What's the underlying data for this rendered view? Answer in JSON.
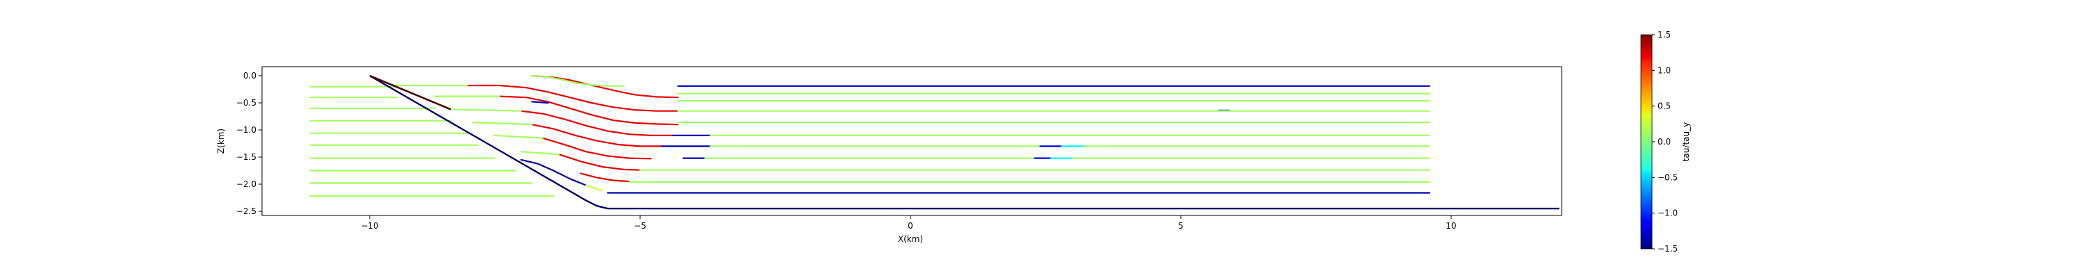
{
  "chart_data": {
    "type": "line",
    "xlabel": "X(km)",
    "ylabel": "Z(km)",
    "xlim": [
      -12.1,
      12.0
    ],
    "ylim": [
      -2.6,
      0.15
    ],
    "x_ticks": [
      -10,
      -5,
      0,
      5,
      10
    ],
    "x_tick_labels": [
      "−10",
      "−5",
      "0",
      "5",
      "10"
    ],
    "y_ticks": [
      0.0,
      -0.5,
      -1.0,
      -1.5,
      -2.0,
      -2.5
    ],
    "y_tick_labels": [
      "0.0",
      "−0.5",
      "−1.0",
      "−1.5",
      "−2.0",
      "−2.5"
    ],
    "grid": false,
    "colorbar": {
      "label": "tau/tau_y",
      "colormap": "jet",
      "range": [
        -1.5,
        1.5
      ],
      "ticks": [
        1.5,
        1.0,
        0.5,
        0.0,
        -0.5,
        -1.0,
        -1.5
      ],
      "tick_labels": [
        "1.5",
        "1.0",
        "0.5",
        "0.0",
        "−0.5",
        "−1.0",
        "−1.5"
      ]
    },
    "boundary": {
      "name": "domain boundary",
      "color": "#000066",
      "x": [
        -10.0,
        -6.0,
        -5.8,
        -5.6,
        -5.4,
        12.0
      ],
      "z": [
        0.0,
        -2.3,
        -2.4,
        -2.45,
        -2.45,
        -2.45
      ]
    },
    "surface_fault": {
      "name": "surface trace",
      "color": "#4d0000",
      "x": [
        -10.0,
        -8.5
      ],
      "z": [
        0.0,
        -0.62
      ]
    },
    "streamlines": [
      {
        "segments": [
          {
            "x": [
              -11.1,
              -9.5
            ],
            "z": [
              -0.2,
              -0.2
            ],
            "c": 0.1
          }
        ]
      },
      {
        "segments": [
          {
            "x": [
              -11.1,
              -9.5
            ],
            "z": [
              -0.4,
              -0.4
            ],
            "c": 0.1
          }
        ]
      },
      {
        "segments": [
          {
            "x": [
              -11.1,
              -8.8
            ],
            "z": [
              -0.6,
              -0.6
            ],
            "c": 0.1
          }
        ]
      },
      {
        "segments": [
          {
            "x": [
              -11.1,
              -8.5
            ],
            "z": [
              -0.83,
              -0.83
            ],
            "c": 0.1
          }
        ]
      },
      {
        "segments": [
          {
            "x": [
              -11.1,
              -8.2
            ],
            "z": [
              -1.06,
              -1.06
            ],
            "c": 0.1
          }
        ]
      },
      {
        "segments": [
          {
            "x": [
              -11.1,
              -8.0
            ],
            "z": [
              -1.28,
              -1.28
            ],
            "c": 0.1
          }
        ]
      },
      {
        "segments": [
          {
            "x": [
              -11.1,
              -7.7
            ],
            "z": [
              -1.52,
              -1.52
            ],
            "c": 0.1
          }
        ]
      },
      {
        "segments": [
          {
            "x": [
              -11.1,
              -7.3
            ],
            "z": [
              -1.75,
              -1.75
            ],
            "c": 0.1
          }
        ]
      },
      {
        "segments": [
          {
            "x": [
              -11.1,
              -7.0
            ],
            "z": [
              -1.98,
              -1.98
            ],
            "c": 0.1
          }
        ]
      },
      {
        "segments": [
          {
            "x": [
              -11.1,
              -6.6
            ],
            "z": [
              -2.22,
              -2.22
            ],
            "c": 0.1
          }
        ]
      },
      {
        "segments": [
          {
            "x": [
              -7.0,
              -6.6,
              -6.3,
              -6.0,
              -5.7,
              -5.4,
              -5.1,
              -4.7,
              -4.3
            ],
            "z": [
              0.0,
              -0.03,
              -0.08,
              -0.15,
              -0.22,
              -0.29,
              -0.35,
              -0.39,
              -0.4
            ],
            "c": 1.2
          },
          {
            "x": [
              -7.0,
              -6.8
            ],
            "z": [
              0.0,
              -0.01
            ],
            "c": 0.1
          }
        ]
      },
      {
        "segments": [
          {
            "x": [
              -8.2,
              -7.6,
              -7.1,
              -6.7,
              -6.3,
              -5.9,
              -5.5,
              -5.1,
              -4.7,
              -4.3
            ],
            "z": [
              -0.18,
              -0.18,
              -0.22,
              -0.3,
              -0.4,
              -0.5,
              -0.58,
              -0.63,
              -0.65,
              -0.65
            ],
            "c": 1.2
          },
          {
            "x": [
              -9.6,
              -8.2
            ],
            "z": [
              -0.18,
              -0.18
            ],
            "c": 0.1
          }
        ]
      },
      {
        "segments": [
          {
            "x": [
              -7.6,
              -7.1,
              -6.7,
              -6.3,
              -5.9,
              -5.5,
              -5.1,
              -4.7,
              -4.3
            ],
            "z": [
              -0.38,
              -0.4,
              -0.48,
              -0.6,
              -0.72,
              -0.82,
              -0.87,
              -0.89,
              -0.9
            ],
            "c": 1.2
          },
          {
            "x": [
              -8.8,
              -7.6
            ],
            "z": [
              -0.38,
              -0.38
            ],
            "c": 0.1
          }
        ]
      },
      {
        "segments": [
          {
            "x": [
              -7.2,
              -6.8,
              -6.4,
              -6.0,
              -5.6,
              -5.2,
              -4.8,
              -4.4
            ],
            "z": [
              -0.65,
              -0.7,
              -0.8,
              -0.92,
              -1.02,
              -1.08,
              -1.1,
              -1.1
            ],
            "c": 1.2
          },
          {
            "x": [
              -8.5,
              -7.2
            ],
            "z": [
              -0.62,
              -0.65
            ],
            "c": 0.1
          }
        ]
      },
      {
        "segments": [
          {
            "x": [
              -7.0,
              -6.6,
              -6.2,
              -5.8,
              -5.4,
              -5.0,
              -4.6
            ],
            "z": [
              -0.9,
              -0.98,
              -1.1,
              -1.2,
              -1.27,
              -1.3,
              -1.3
            ],
            "c": 1.2
          },
          {
            "x": [
              -8.1,
              -7.0
            ],
            "z": [
              -0.86,
              -0.9
            ],
            "c": 0.1
          }
        ]
      },
      {
        "segments": [
          {
            "x": [
              -6.8,
              -6.4,
              -6.0,
              -5.6,
              -5.2,
              -4.8
            ],
            "z": [
              -1.15,
              -1.27,
              -1.4,
              -1.48,
              -1.52,
              -1.53
            ],
            "c": 1.2
          },
          {
            "x": [
              -7.7,
              -6.8
            ],
            "z": [
              -1.1,
              -1.15
            ],
            "c": 0.1
          }
        ]
      },
      {
        "segments": [
          {
            "x": [
              -6.5,
              -6.1,
              -5.7,
              -5.3,
              -5.0
            ],
            "z": [
              -1.45,
              -1.58,
              -1.68,
              -1.73,
              -1.74
            ],
            "c": 1.2
          },
          {
            "x": [
              -7.2,
              -6.5
            ],
            "z": [
              -1.4,
              -1.45
            ],
            "c": 0.1
          }
        ]
      },
      {
        "segments": [
          {
            "x": [
              -6.1,
              -5.8,
              -5.5,
              -5.2
            ],
            "z": [
              -1.8,
              -1.88,
              -1.93,
              -1.95
            ],
            "c": 1.2
          }
        ]
      },
      {
        "segments": [
          {
            "x": [
              -7.2,
              -6.9,
              -6.6,
              -6.3,
              -6.0
            ],
            "z": [
              -1.55,
              -1.62,
              -1.75,
              -1.9,
              -2.02
            ],
            "c": -1.4
          },
          {
            "x": [
              -6.0,
              -5.7
            ],
            "z": [
              -2.02,
              -2.12
            ],
            "c": 0.2
          }
        ]
      },
      {
        "segments": [
          {
            "x": [
              -4.3,
              9.6
            ],
            "z": [
              -0.19,
              -0.19
            ],
            "c": -1.35
          }
        ]
      },
      {
        "segments": [
          {
            "x": [
              -5.6,
              9.6
            ],
            "z": [
              -2.16,
              -2.16
            ],
            "c": -1.35
          }
        ]
      },
      {
        "segments": [
          {
            "x": [
              -6.8,
              -6.5,
              -6.2,
              -5.9,
              -5.6,
              -5.3
            ],
            "z": [
              -0.01,
              -0.06,
              -0.13,
              -0.17,
              -0.19,
              -0.19
            ],
            "c": 0.1
          },
          {
            "x": [
              -4.3,
              9.6
            ],
            "z": [
              -0.33,
              -0.33
            ],
            "c": 0.1
          }
        ]
      },
      {
        "segments": [
          {
            "x": [
              -7.0,
              -6.7
            ],
            "z": [
              -0.48,
              -0.5
            ],
            "c": -1.3
          },
          {
            "x": [
              -4.3,
              9.6
            ],
            "z": [
              -0.46,
              -0.46
            ],
            "c": 0.1
          },
          {
            "x": [
              5.7,
              5.9
            ],
            "z": [
              -0.64,
              -0.64
            ],
            "c": -0.9
          }
        ]
      },
      {
        "segments": [
          {
            "x": [
              -4.3,
              9.6
            ],
            "z": [
              -0.65,
              -0.65
            ],
            "c": 0.1
          }
        ]
      },
      {
        "segments": [
          {
            "x": [
              -4.3,
              9.6
            ],
            "z": [
              -0.86,
              -0.86
            ],
            "c": 0.1
          }
        ]
      },
      {
        "segments": [
          {
            "x": [
              -4.4,
              -3.7
            ],
            "z": [
              -1.1,
              -1.1
            ],
            "c": -1.35
          },
          {
            "x": [
              -3.7,
              9.6
            ],
            "z": [
              -1.1,
              -1.1
            ],
            "c": 0.1
          }
        ]
      },
      {
        "segments": [
          {
            "x": [
              -4.6,
              -3.7
            ],
            "z": [
              -1.3,
              -1.3
            ],
            "c": -1.35
          },
          {
            "x": [
              -3.7,
              2.4
            ],
            "z": [
              -1.3,
              -1.3
            ],
            "c": 0.1
          },
          {
            "x": [
              2.4,
              2.8
            ],
            "z": [
              -1.3,
              -1.3
            ],
            "c": -1.2
          },
          {
            "x": [
              2.8,
              3.2
            ],
            "z": [
              -1.3,
              -1.3
            ],
            "c": -0.4
          },
          {
            "x": [
              3.2,
              9.6
            ],
            "z": [
              -1.3,
              -1.3
            ],
            "c": 0.1
          }
        ]
      },
      {
        "segments": [
          {
            "x": [
              -4.2,
              -3.8
            ],
            "z": [
              -1.52,
              -1.52
            ],
            "c": -1.35
          },
          {
            "x": [
              -3.8,
              2.3
            ],
            "z": [
              -1.52,
              -1.52
            ],
            "c": 0.1
          },
          {
            "x": [
              2.3,
              2.6
            ],
            "z": [
              -1.52,
              -1.52
            ],
            "c": -1.2
          },
          {
            "x": [
              2.6,
              3.0
            ],
            "z": [
              -1.52,
              -1.52
            ],
            "c": -0.4
          },
          {
            "x": [
              3.0,
              9.6
            ],
            "z": [
              -1.52,
              -1.52
            ],
            "c": 0.1
          }
        ]
      },
      {
        "segments": [
          {
            "x": [
              -5.0,
              9.6
            ],
            "z": [
              -1.74,
              -1.74
            ],
            "c": 0.1
          }
        ]
      },
      {
        "segments": [
          {
            "x": [
              -5.2,
              9.6
            ],
            "z": [
              -1.96,
              -1.96
            ],
            "c": 0.1
          }
        ]
      }
    ]
  }
}
